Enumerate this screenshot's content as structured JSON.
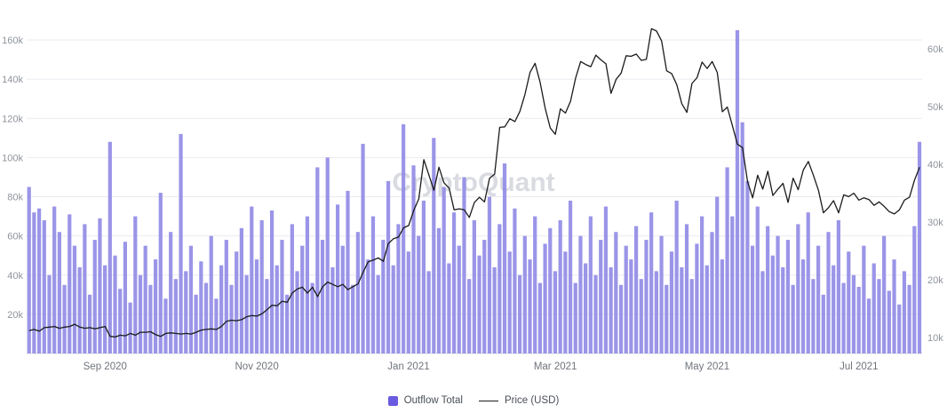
{
  "watermark": "CryptoQuant",
  "legend": {
    "outflow_label": "Outflow Total",
    "price_label": "Price (USD)"
  },
  "colors": {
    "bar": "#938ce6",
    "bar_legend": "#6a5be0",
    "price_line": "#1b1b1b",
    "grid": "#ebebf0",
    "axis_text": "#8f949c",
    "watermark": "#cdd0d8"
  },
  "chart_data": {
    "type": "bar+line",
    "title": "",
    "x_range_shown": [
      "Aug 2020",
      "Jul 2021"
    ],
    "x_ticks": [
      {
        "index": 15,
        "label": "Sep 2020"
      },
      {
        "index": 45,
        "label": "Nov 2020"
      },
      {
        "index": 75,
        "label": "Jan 2021"
      },
      {
        "index": 104,
        "label": "Mar 2021"
      },
      {
        "index": 134,
        "label": "May 2021"
      },
      {
        "index": 164,
        "label": "Jul 2021"
      }
    ],
    "left_axis": {
      "series": "Outflow Total",
      "tick_values": [
        20,
        40,
        60,
        80,
        100,
        120,
        140,
        160
      ],
      "tick_labels": [
        "20k",
        "40k",
        "60k",
        "80k",
        "100k",
        "120k",
        "140k",
        "160k"
      ],
      "unit": "thousands",
      "range": [
        0,
        176
      ]
    },
    "right_axis": {
      "series": "Price (USD)",
      "tick_values": [
        10,
        20,
        30,
        40,
        50,
        60
      ],
      "tick_labels": [
        "10k",
        "20k",
        "30k",
        "40k",
        "50k",
        "60k"
      ],
      "unit": "thousands USD",
      "range": [
        5,
        68
      ]
    },
    "series": [
      {
        "name": "Outflow Total",
        "type": "bar",
        "axis": "left",
        "unit": "thousands",
        "values": [
          85,
          72,
          74,
          68,
          40,
          75,
          62,
          35,
          71,
          55,
          44,
          66,
          30,
          58,
          69,
          45,
          108,
          50,
          33,
          57,
          26,
          70,
          40,
          55,
          35,
          48,
          82,
          28,
          62,
          38,
          112,
          42,
          55,
          30,
          47,
          36,
          60,
          28,
          45,
          58,
          35,
          52,
          64,
          40,
          75,
          48,
          68,
          38,
          73,
          45,
          58,
          30,
          66,
          42,
          55,
          70,
          36,
          95,
          58,
          100,
          44,
          76,
          55,
          83,
          35,
          62,
          107,
          48,
          70,
          40,
          58,
          88,
          45,
          66,
          117,
          52,
          96,
          60,
          78,
          42,
          110,
          64,
          85,
          46,
          72,
          55,
          90,
          38,
          68,
          50,
          58,
          80,
          44,
          66,
          97,
          52,
          74,
          40,
          60,
          48,
          70,
          36,
          56,
          64,
          42,
          68,
          52,
          78,
          36,
          60,
          46,
          70,
          40,
          58,
          75,
          44,
          62,
          35,
          55,
          48,
          65,
          38,
          58,
          72,
          42,
          60,
          35,
          52,
          78,
          44,
          66,
          38,
          56,
          70,
          45,
          62,
          80,
          48,
          95,
          70,
          165,
          118,
          88,
          55,
          75,
          42,
          65,
          50,
          60,
          44,
          58,
          35,
          66,
          48,
          72,
          38,
          55,
          30,
          62,
          45,
          68,
          36,
          52,
          40,
          34,
          55,
          28,
          46,
          38,
          60,
          32,
          48,
          25,
          42,
          35,
          65,
          108
        ]
      },
      {
        "name": "Price (USD)",
        "type": "line",
        "axis": "right",
        "unit": "thousands USD",
        "values": [
          11.2,
          11.4,
          11.1,
          11.7,
          11.8,
          11.9,
          11.6,
          11.8,
          11.9,
          12.3,
          11.8,
          11.6,
          11.7,
          11.5,
          11.7,
          11.9,
          10.2,
          10.1,
          10.4,
          10.3,
          10.7,
          10.4,
          10.9,
          10.9,
          11.0,
          10.5,
          10.2,
          10.7,
          10.8,
          10.7,
          10.6,
          10.7,
          10.6,
          10.9,
          11.3,
          11.4,
          11.5,
          11.4,
          11.9,
          12.8,
          13.0,
          12.9,
          13.1,
          13.6,
          13.8,
          13.7,
          14.1,
          14.8,
          15.6,
          15.5,
          16.3,
          16.1,
          17.7,
          18.4,
          18.7,
          17.7,
          18.7,
          17.1,
          18.8,
          19.6,
          19.2,
          18.8,
          19.2,
          18.3,
          18.8,
          19.3,
          21.3,
          23.1,
          23.4,
          23.8,
          23.2,
          26.3,
          27.1,
          27.4,
          29.0,
          29.4,
          32.0,
          34.0,
          40.8,
          38.2,
          35.5,
          39.5,
          36.8,
          35.9,
          32.1,
          32.3,
          32.1,
          30.8,
          33.4,
          34.3,
          33.5,
          37.6,
          38.3,
          46.4,
          46.5,
          47.9,
          47.4,
          49.2,
          52.1,
          55.9,
          57.5,
          54.2,
          49.7,
          46.3,
          45.2,
          49.6,
          48.9,
          50.9,
          54.9,
          57.8,
          57.3,
          56.9,
          58.9,
          58.1,
          57.4,
          52.3,
          54.7,
          55.8,
          58.8,
          58.7,
          59.1,
          58.0,
          58.2,
          63.5,
          63.1,
          61.4,
          56.2,
          55.7,
          53.8,
          50.5,
          49.0,
          54.0,
          55.0,
          57.7,
          56.6,
          57.8,
          55.9,
          49.1,
          49.9,
          46.7,
          43.5,
          42.9,
          37.0,
          34.2,
          38.1,
          35.7,
          38.8,
          34.6,
          35.7,
          36.7,
          33.4,
          37.6,
          35.6,
          39.0,
          40.5,
          38.1,
          35.5,
          31.6,
          32.5,
          33.7,
          31.6,
          34.7,
          34.4,
          35.0,
          33.8,
          34.2,
          33.9,
          32.9,
          33.5,
          32.7,
          31.8,
          31.4,
          32.1,
          33.8,
          34.3,
          37.3,
          39.5
        ]
      }
    ],
    "legend_position": "bottom",
    "grid": "horizontal"
  }
}
